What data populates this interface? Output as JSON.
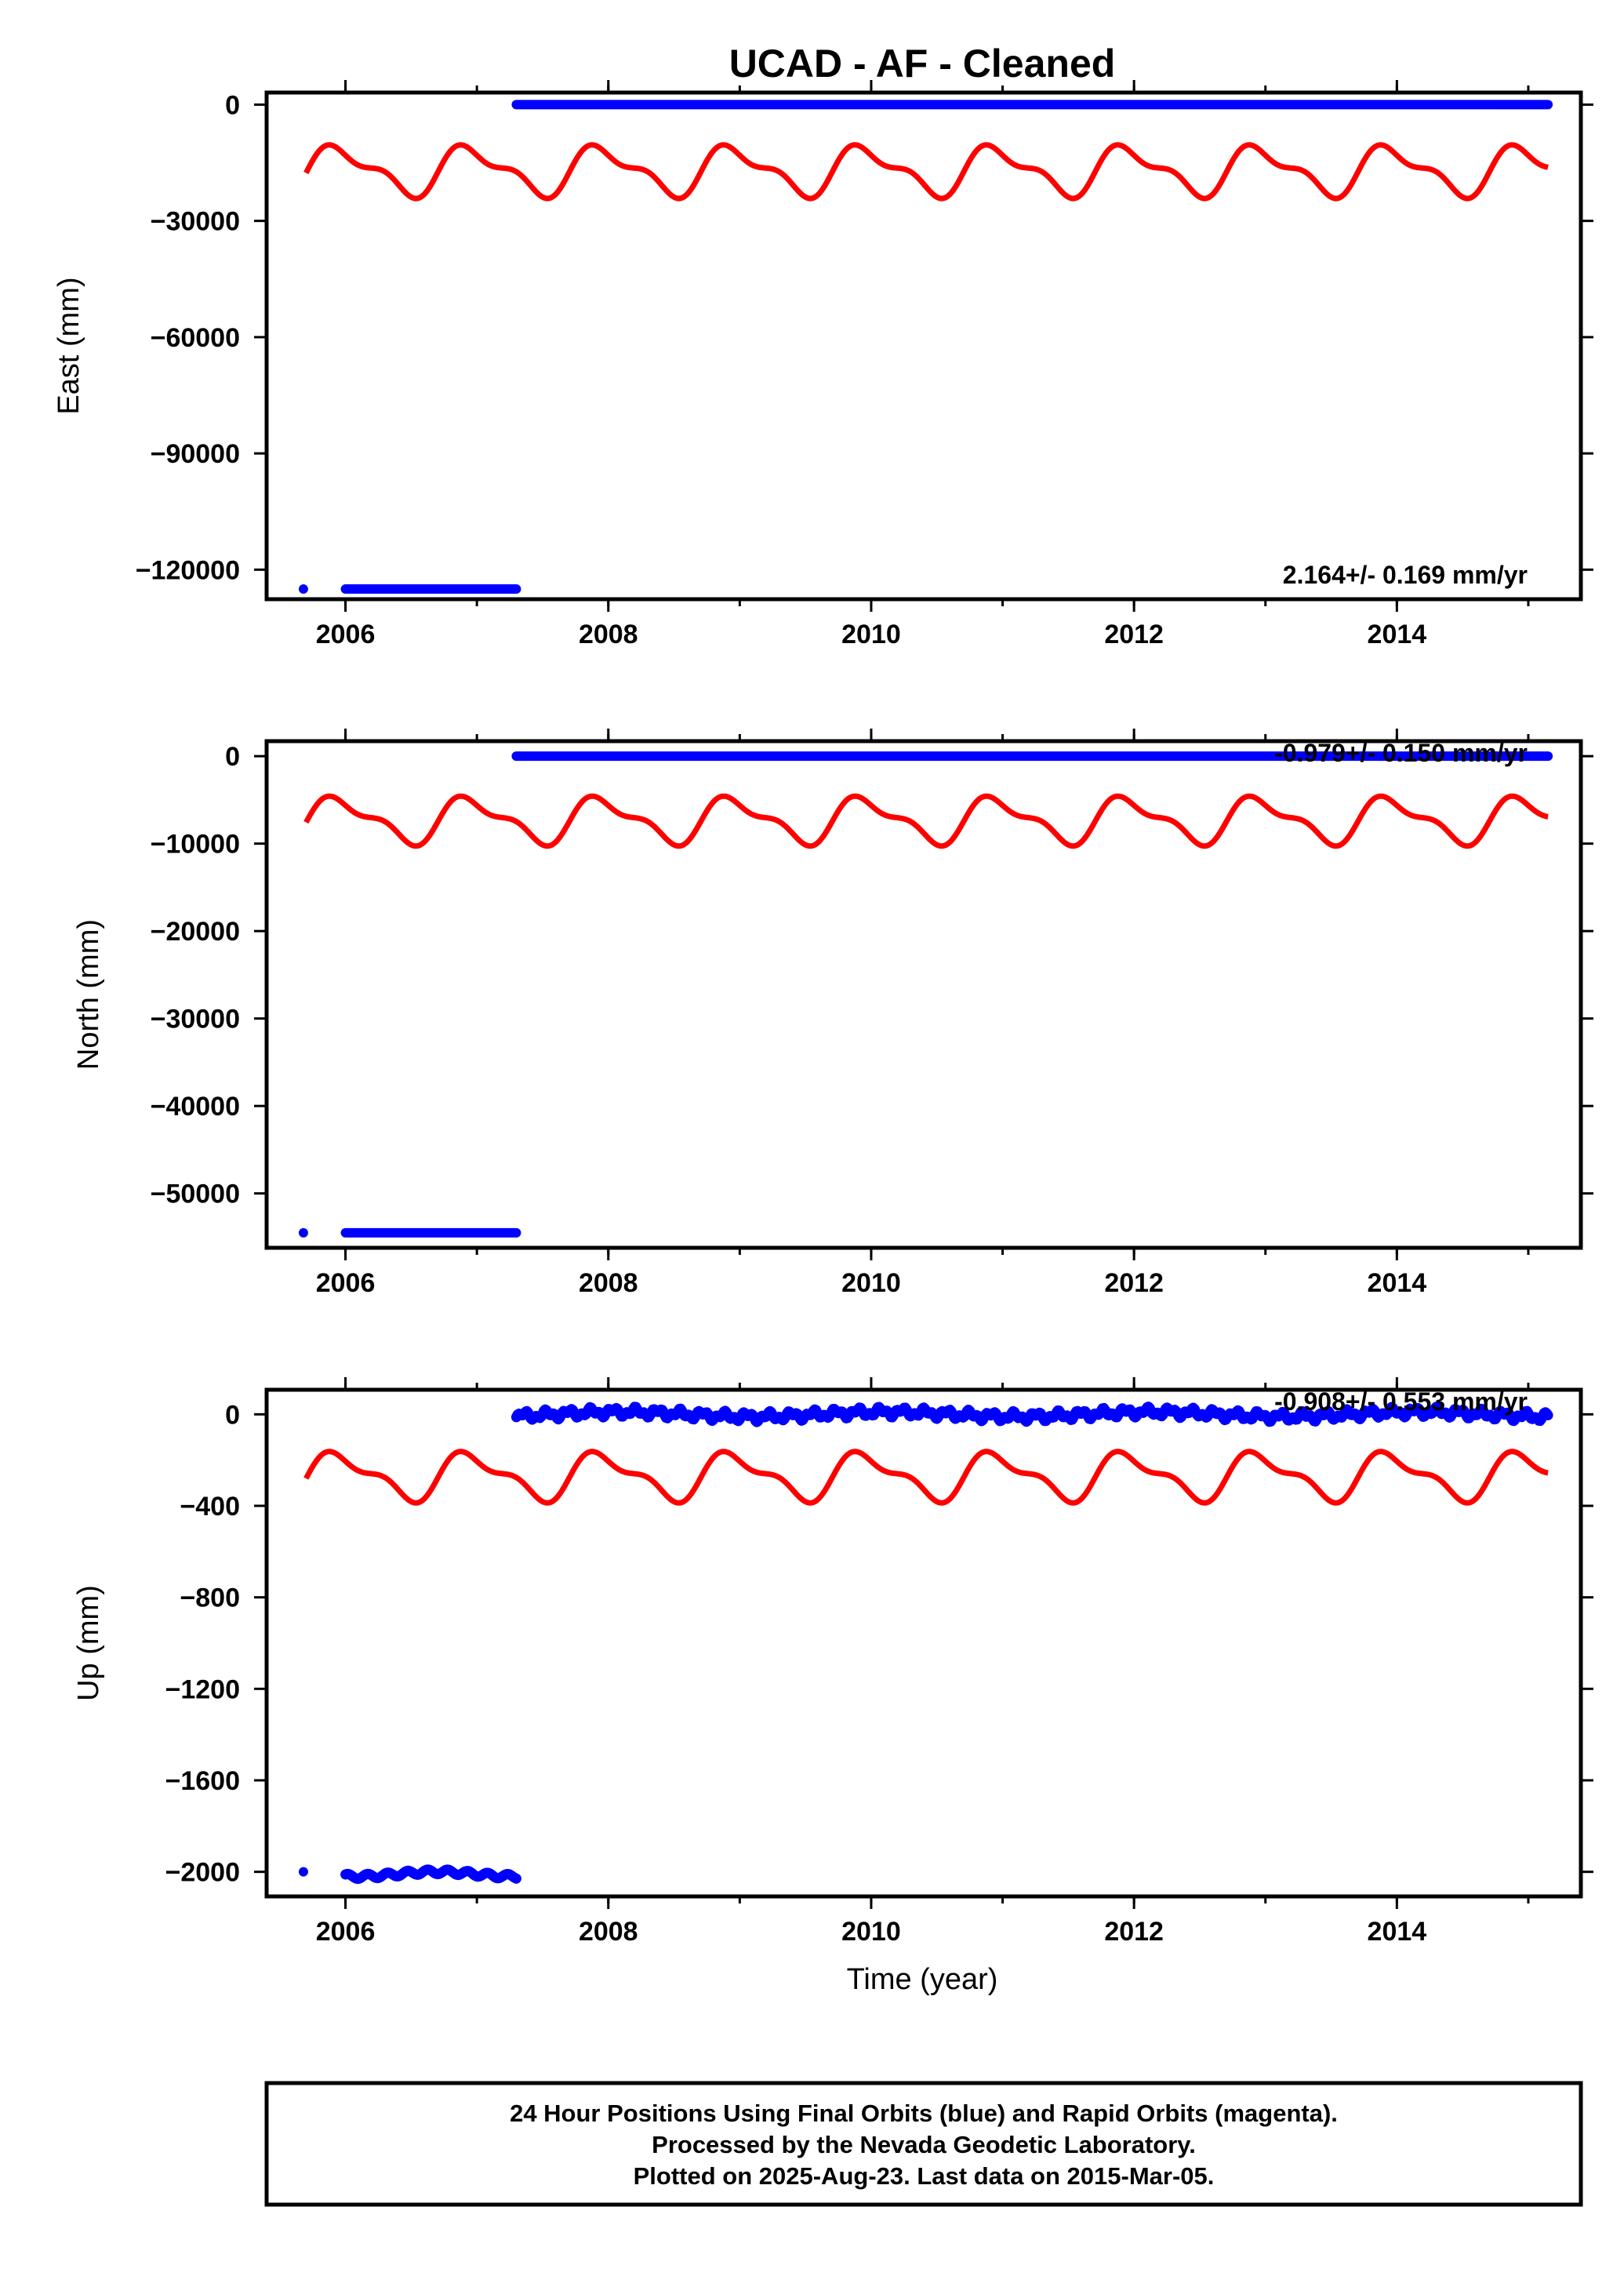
{
  "chart_data": [
    {
      "type": "scatter",
      "title": "UCAD  - AF - Cleaned",
      "ylabel": "East (mm)",
      "xlabel": "",
      "xlim": [
        2005.4,
        2015.4
      ],
      "ylim": [
        -126000,
        1500
      ],
      "xticks": [
        2006,
        2008,
        2010,
        2012,
        2014
      ],
      "xtick_labels": [
        "2006",
        "2008",
        "2010",
        "2012",
        "2014"
      ],
      "yticks": [
        0,
        -30000,
        -60000,
        -90000,
        -120000
      ],
      "ytick_labels": [
        "0",
        "−30000",
        "−60000",
        "−90000",
        "−120000"
      ],
      "rate_label": "2.164+/- 0.169 mm/yr",
      "series": [
        {
          "kind": "points",
          "color": "#0000ff",
          "x": [
            2005.68,
            2006.0,
            2007.3
          ],
          "y": [
            -125000,
            -125000,
            -125000
          ],
          "segments": [
            [
              2005.68,
              2005.68,
              -125000
            ],
            [
              2006.0,
              2007.3,
              -125000
            ],
            [
              2007.3,
              2015.15,
              0
            ]
          ]
        },
        {
          "kind": "seasonal",
          "color": "#ff0000",
          "x_start": 2005.7,
          "x_end": 2015.15,
          "mean": -17000,
          "annual_amp": 5500,
          "semiannual_amp": 2500,
          "annual_phase": 0.2,
          "semiannual_phase": 2.2
        }
      ]
    },
    {
      "type": "scatter",
      "title": "",
      "ylabel": "North (mm)",
      "xlabel": "",
      "xlim": [
        2005.4,
        2015.4
      ],
      "ylim": [
        -55500,
        1000
      ],
      "xticks": [
        2006,
        2008,
        2010,
        2012,
        2014
      ],
      "xtick_labels": [
        "2006",
        "2008",
        "2010",
        "2012",
        "2014"
      ],
      "yticks": [
        0,
        -10000,
        -20000,
        -30000,
        -40000,
        -50000
      ],
      "ytick_labels": [
        "0",
        "−10000",
        "−20000",
        "−30000",
        "−40000",
        "−50000"
      ],
      "rate_label": "-0.979+/- 0.150 mm/yr",
      "series": [
        {
          "kind": "points",
          "color": "#0000ff",
          "segments": [
            [
              2005.68,
              2005.68,
              -54500
            ],
            [
              2006.0,
              2007.3,
              -54500
            ],
            [
              2007.3,
              2015.15,
              0
            ]
          ]
        },
        {
          "kind": "seasonal",
          "color": "#ff0000",
          "x_start": 2005.7,
          "x_end": 2015.15,
          "mean": -7300,
          "annual_amp": 2300,
          "semiannual_amp": 1000,
          "annual_phase": 0.2,
          "semiannual_phase": 2.2
        }
      ]
    },
    {
      "type": "scatter",
      "title": "",
      "ylabel": "Up (mm)",
      "xlabel": "Time (year)",
      "xlim": [
        2005.4,
        2015.4
      ],
      "ylim": [
        -2080,
        80
      ],
      "xticks": [
        2006,
        2008,
        2010,
        2012,
        2014
      ],
      "xtick_labels": [
        "2006",
        "2008",
        "2010",
        "2012",
        "2014"
      ],
      "yticks": [
        0,
        -400,
        -800,
        -1200,
        -1600,
        -2000
      ],
      "ytick_labels": [
        "0",
        "−400",
        "−800",
        "−1200",
        "−1600",
        "−2000"
      ],
      "rate_label": "-0.908+/- 0.553 mm/yr",
      "series": [
        {
          "kind": "points",
          "color": "#0000ff",
          "segments": [
            [
              2005.68,
              2005.68,
              -2000
            ],
            [
              2006.0,
              2007.3,
              -2010
            ],
            [
              2007.3,
              2015.15,
              0
            ]
          ]
        },
        {
          "kind": "seasonal",
          "color": "#ff0000",
          "x_start": 2005.7,
          "x_end": 2015.15,
          "mean": -270,
          "annual_amp": 90,
          "semiannual_amp": 40,
          "annual_phase": 0.2,
          "semiannual_phase": 2.2
        }
      ]
    }
  ],
  "footer": {
    "line1": "24 Hour Positions Using Final Orbits (blue) and Rapid Orbits (magenta).",
    "line2": "Processed by the Nevada Geodetic Laboratory.",
    "line3": "Plotted on 2025-Aug-23. Last data on 2015-Mar-05."
  }
}
